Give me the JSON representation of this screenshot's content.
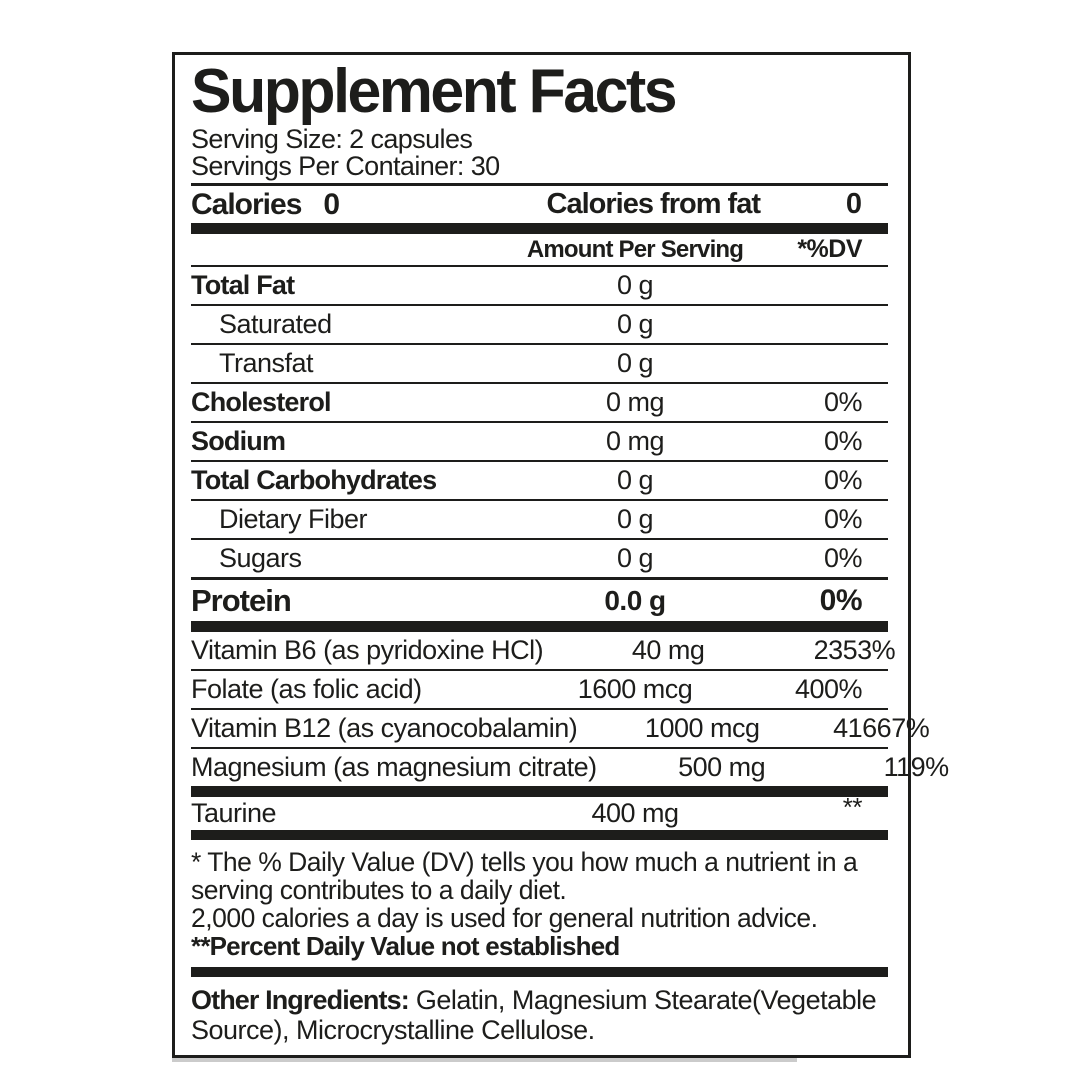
{
  "colors": {
    "ink": "#1d1d1b",
    "background": "#ffffff",
    "shadow": "#cbcbcb"
  },
  "panel": {
    "title": "Supplement Facts",
    "serving_size": "Serving Size: 2 capsules",
    "servings_per_container": "Servings Per Container: 30",
    "calories": {
      "label": "Calories",
      "value": "0",
      "from_fat_label": "Calories from fat",
      "from_fat_value": "0"
    },
    "columns": {
      "amount": "Amount Per Serving",
      "dv": "*%DV"
    },
    "rows": [
      {
        "name": "Total Fat",
        "amount": "0 g",
        "dv": ""
      },
      {
        "name": "Saturated",
        "amount": "0 g",
        "dv": ""
      },
      {
        "name": "Transfat",
        "amount": "0 g",
        "dv": ""
      },
      {
        "name": "Cholesterol",
        "amount": "0 mg",
        "dv": "0%"
      },
      {
        "name": "Sodium",
        "amount": "0 mg",
        "dv": "0%"
      },
      {
        "name": "Total Carbohydrates",
        "amount": "0 g",
        "dv": "0%"
      },
      {
        "name": "Dietary Fiber",
        "amount": "0 g",
        "dv": "0%"
      },
      {
        "name": "Sugars",
        "amount": "0 g",
        "dv": "0%"
      },
      {
        "name": "Protein",
        "amount": "0.0 g",
        "dv": "0%"
      },
      {
        "name": "Vitamin B6 (as pyridoxine HCl)",
        "amount": "40 mg",
        "dv": "2353%"
      },
      {
        "name": "Folate (as folic acid)",
        "amount": "1600 mcg",
        "dv": "400%"
      },
      {
        "name": "Vitamin B12 (as cyanocobalamin)",
        "amount": "1000 mcg",
        "dv": "41667%"
      },
      {
        "name": "Magnesium (as magnesium citrate)",
        "amount": "500 mg",
        "dv": "119%"
      },
      {
        "name": "Taurine",
        "amount": "400 mg",
        "dv": "**"
      }
    ],
    "footnotes": {
      "dv_note": "* The % Daily Value (DV) tells you how much a nutrient in a serving contributes to a daily diet.",
      "calorie_note": "2,000 calories a day is used for general nutrition advice.",
      "not_established_note": "**Percent Daily Value not established"
    },
    "other_ingredients": {
      "label": "Other Ingredients:",
      "text": "Gelatin, Magnesium Stearate(Vegetable Source), Microcrystalline Cellulose."
    }
  }
}
